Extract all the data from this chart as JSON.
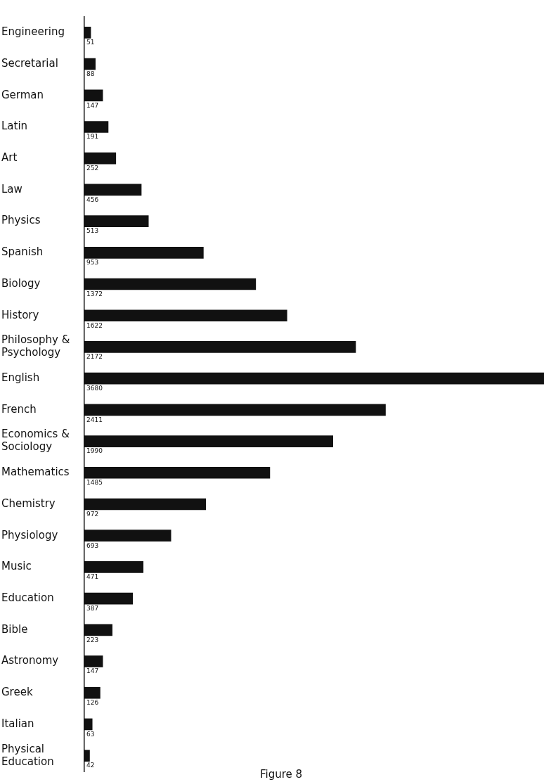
{
  "chart_data": {
    "type": "bar",
    "orientation": "horizontal",
    "categories": [
      "Engineering",
      "Secretarial",
      "German",
      "Latin",
      "Art",
      "Law",
      "Physics",
      "Spanish",
      "Biology",
      "History",
      "Philosophy & Psychology",
      "English",
      "French",
      "Economics & Sociology",
      "Mathematics",
      "Chemistry",
      "Physiology",
      "Music",
      "Education",
      "Bible",
      "Astronomy",
      "Greek",
      "Italian",
      "Physical Education"
    ],
    "values": [
      51,
      88,
      147,
      191,
      252,
      456,
      513,
      953,
      1372,
      1622,
      2172,
      3680,
      2411,
      1990,
      1485,
      972,
      693,
      471,
      387,
      223,
      147,
      126,
      63,
      42
    ],
    "color": "#111111",
    "xlim": [
      0,
      3680
    ],
    "data_labels": true,
    "tick_labels": "y",
    "grid": false,
    "legend": false,
    "annotations": [
      "Figure 8"
    ]
  }
}
